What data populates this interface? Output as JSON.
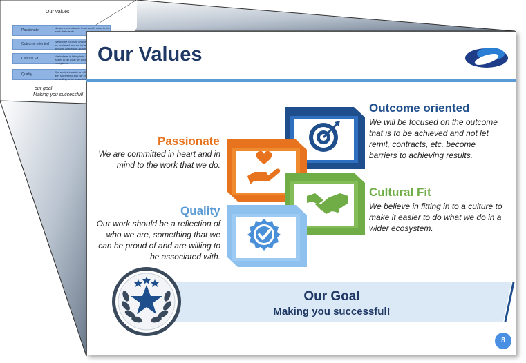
{
  "back_slide": {
    "title": "Our Values",
    "rows": [
      {
        "label": "Passionate",
        "desc": "We are committed in heart and in mind to the work that we do."
      },
      {
        "label": "Outcome oriented",
        "desc": "We will be focused on the outcome that is to be achieved and not let remit, contracts, etc. become barriers to achieving results."
      },
      {
        "label": "Cultural Fit",
        "desc": "We believe in fitting in to a culture to make it easier to do what we do in a wider ecosystem."
      },
      {
        "label": "Quality",
        "desc": "Our work should be a reflection of who we are, something that we can be proud of and are willing to be associated with."
      }
    ],
    "goal_label": "our goal",
    "goal_text": "Making you successful!"
  },
  "slide": {
    "title": "Our Values",
    "values": {
      "passionate": {
        "heading": "Passionate",
        "line1": "We are committed in heart and in",
        "line2": "mind to the work that we do.",
        "color": "#e8731e"
      },
      "outcome": {
        "heading": "Outcome oriented",
        "line1": "We will be focused on the outcome",
        "line2": "that is to be achieved and not let",
        "line3": "remit, contracts, etc. become",
        "line4": "barriers to achieving results.",
        "color": "#1f4e8c"
      },
      "cultural": {
        "heading": "Cultural Fit",
        "line1": "We believe in fitting in to a culture to",
        "line2": "make it easier to do what we do in a",
        "line3": "wider ecosystem.",
        "color": "#70ad47"
      },
      "quality": {
        "heading": "Quality",
        "line1": "Our work should be a reflection of",
        "line2": "who we are, something that we",
        "line3": "can be proud of and are willing to",
        "line4": "be associated with.",
        "color": "#5b9bd5"
      }
    },
    "goal": {
      "title": "Our Goal",
      "subtitle": "Making you successful!"
    },
    "page_number": "8",
    "icons": [
      "logo",
      "target-icon",
      "heart-hand-icon",
      "handshake-icon",
      "badge-check-icon",
      "laurel-star-icon"
    ]
  }
}
